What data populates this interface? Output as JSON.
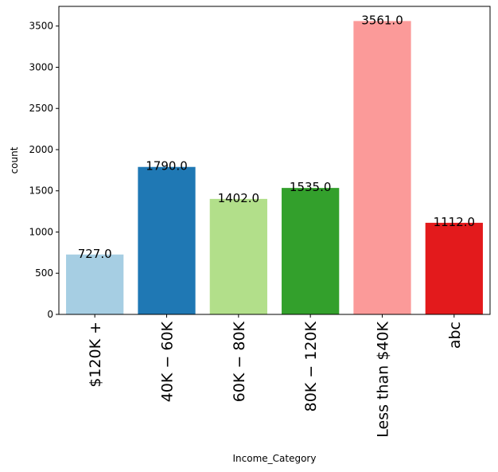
{
  "chart_data": {
    "type": "bar",
    "title": "",
    "xlabel": "Income_Category",
    "ylabel": "count",
    "categories": [
      "$120K +",
      "$40K - $60K",
      "$60K - $80K",
      "$80K - $120K",
      "Less than $40K",
      "abc"
    ],
    "category_display": [
      "$120K +",
      "40K − 60K",
      "60K − 80K",
      "80K − 120K",
      "Less than $40K",
      "abc"
    ],
    "values": [
      727,
      1790,
      1402,
      1535,
      3561,
      1112
    ],
    "value_labels": [
      "727.0",
      "1790.0",
      "1402.0",
      "1535.0",
      "3561.0",
      "1112.0"
    ],
    "colors": [
      "#a6cee3",
      "#1f78b4",
      "#b2df8a",
      "#33a02c",
      "#fb9a99",
      "#e31a1c"
    ],
    "ylim": [
      0,
      3739
    ],
    "yticks": [
      0,
      500,
      1000,
      1500,
      2000,
      2500,
      3000,
      3500
    ],
    "ytick_labels": [
      "0",
      "500",
      "1000",
      "1500",
      "2000",
      "2500",
      "3000",
      "3500"
    ],
    "grid": false,
    "legend": "none"
  }
}
